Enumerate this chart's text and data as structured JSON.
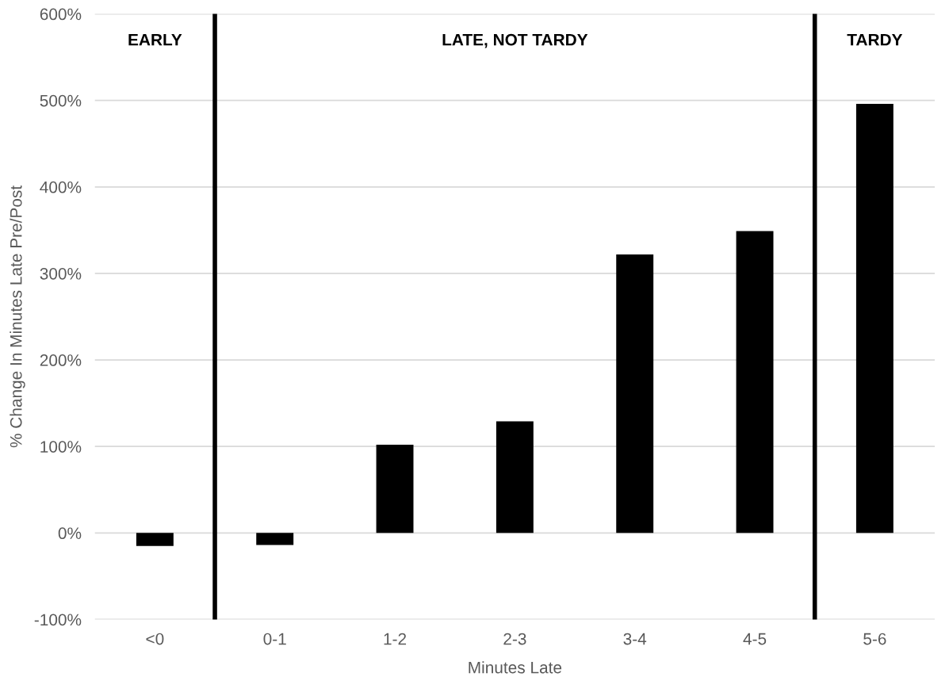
{
  "chart_data": {
    "type": "bar",
    "xlabel": "Minutes Late",
    "ylabel": "% Change In Minutes Late Pre/Post",
    "categories": [
      "<0",
      "0-1",
      "1-2",
      "2-3",
      "3-4",
      "4-5",
      "5-6"
    ],
    "values": [
      -15,
      -14,
      102,
      129,
      322,
      349,
      496
    ],
    "color": "#000000",
    "ylim": [
      -100,
      600
    ],
    "yticks": [
      {
        "value": -100,
        "label": "-100%"
      },
      {
        "value": 0,
        "label": "0%"
      },
      {
        "value": 100,
        "label": "100%"
      },
      {
        "value": 200,
        "label": "200%"
      },
      {
        "value": 300,
        "label": "300%"
      },
      {
        "value": 400,
        "label": "400%"
      },
      {
        "value": 500,
        "label": "500%"
      },
      {
        "value": 600,
        "label": "600%"
      }
    ],
    "grid": "y",
    "annotations": [
      "EARLY",
      "LATE, NOT TARDY",
      "TARDY"
    ]
  }
}
